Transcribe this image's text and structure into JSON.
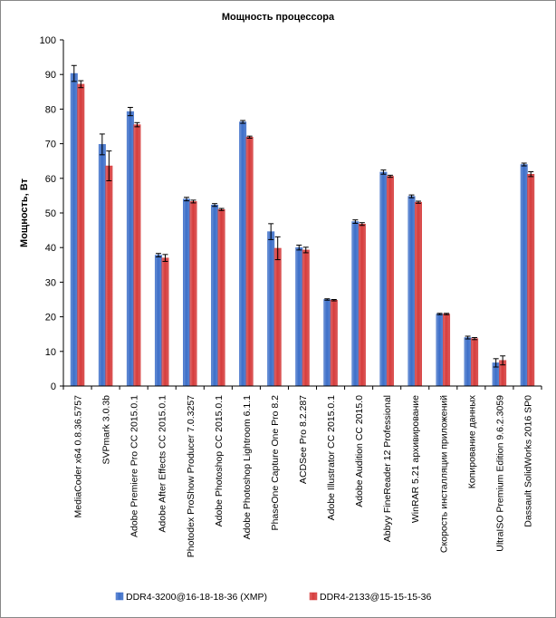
{
  "chart_data": {
    "type": "bar",
    "title": "Мощность  процессора",
    "xlabel": "",
    "ylabel": "Мощность,  Вт",
    "ylim": [
      0,
      100
    ],
    "yticks": [
      0,
      10,
      20,
      30,
      40,
      50,
      60,
      70,
      80,
      90,
      100
    ],
    "grid": false,
    "legend_position": "bottom",
    "categories": [
      "MediaCoder x64 0.8.36.5757",
      "SVPmark 3.0.3b",
      "Adobe Premiere Pro CC 2015.0.1",
      "Adobe After Effects CC 2015.0.1",
      "Photodex ProShow Producer 7.0.3257",
      "Adobe Photoshop CC 2015.0.1",
      "Adobe Photoshop Lightroom 6.1.1",
      "PhaseOne Capture One Pro 8.2",
      "ACDSee Pro 8.2.287",
      "Adobe Illustrator CC 2015.0.1",
      "Adobe Audition CC 2015.0",
      "Abbyy FineReader 12 Professional",
      "WinRAR 5.21 архивирование",
      "Скорость инсталляции приложений",
      "Копирование данных",
      "UltraISO Premium Edition 9.6.2.3059",
      "Dassault SolidWorks 2016 SP0"
    ],
    "series": [
      {
        "name": "DDR4-3200@16-18-18-36 (XMP)",
        "color": "#3d6fc9",
        "values": [
          90.3,
          69.8,
          79.3,
          37.8,
          54.0,
          52.3,
          76.3,
          44.6,
          40.0,
          25.0,
          47.5,
          61.8,
          54.8,
          20.8,
          14.0,
          6.7,
          64.0
        ],
        "errors": [
          2.3,
          3.0,
          1.2,
          0.5,
          0.5,
          0.4,
          0.4,
          2.3,
          0.7,
          0.2,
          0.5,
          0.6,
          0.4,
          0.2,
          0.4,
          1.2,
          0.4
        ]
      },
      {
        "name": "DDR4-2133@15-15-15-36",
        "color": "#d63c3c",
        "values": [
          87.2,
          63.6,
          75.5,
          37.0,
          53.3,
          51.0,
          71.9,
          39.8,
          39.3,
          24.8,
          46.8,
          60.6,
          53.1,
          20.8,
          13.7,
          7.4,
          61.2
        ],
        "errors": [
          1.0,
          4.3,
          0.6,
          1.0,
          0.4,
          0.3,
          0.3,
          3.3,
          0.8,
          0.2,
          0.4,
          0.3,
          0.3,
          0.2,
          0.3,
          1.3,
          0.7
        ]
      }
    ]
  }
}
